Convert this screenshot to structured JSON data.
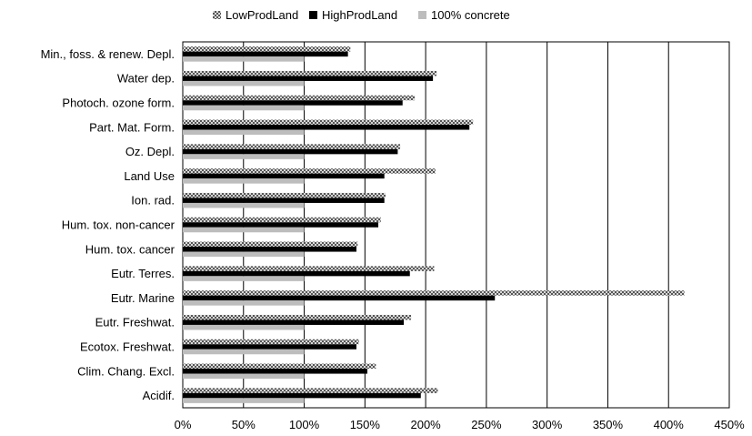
{
  "chart_data": {
    "type": "bar",
    "orientation": "horizontal",
    "categories": [
      "Min., foss. & renew. Depl.",
      "Water dep.",
      "Photoch. ozone form.",
      "Part. Mat. Form.",
      "Oz. Depl.",
      "Land Use",
      "Ion. rad.",
      "Hum. tox. non-cancer",
      "Hum. tox. cancer",
      "Eutr. Terres.",
      "Eutr. Marine",
      "Eutr. Freshwat.",
      "Ecotox. Freshwat.",
      "Clim. Chang. Excl.",
      "Acidif."
    ],
    "series": [
      {
        "name": "LowProdLand",
        "color": "#8c8c8c",
        "pattern": "dotted-gray",
        "values": [
          138,
          209,
          191,
          239,
          179,
          208,
          167,
          163,
          144,
          207,
          413,
          188,
          145,
          159,
          210
        ]
      },
      {
        "name": "HighProdLand",
        "color": "#000000",
        "pattern": "solid-black",
        "values": [
          136,
          206,
          181,
          236,
          177,
          166,
          166,
          161,
          143,
          187,
          257,
          182,
          143,
          152,
          196
        ]
      },
      {
        "name": "100% concrete",
        "color": "#bdbdbd",
        "pattern": "light-gray",
        "values": [
          100,
          100,
          100,
          100,
          100,
          100,
          100,
          100,
          100,
          100,
          100,
          100,
          100,
          100,
          100
        ]
      }
    ],
    "xticks": [
      "0%",
      "50%",
      "100%",
      "150%",
      "200%",
      "250%",
      "300%",
      "350%",
      "400%",
      "450%"
    ],
    "xlim": [
      0,
      450
    ],
    "grid": "vertical",
    "legend_position": "top"
  }
}
